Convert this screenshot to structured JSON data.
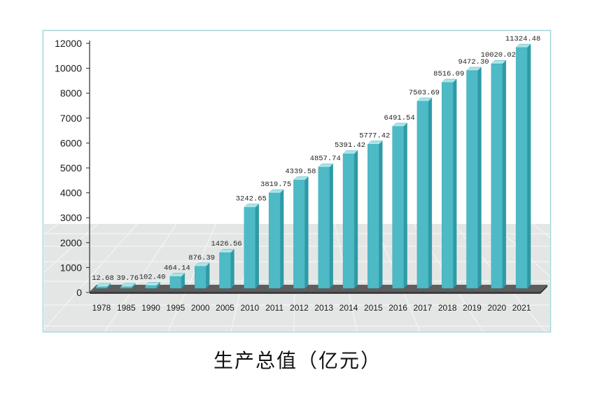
{
  "chart_data": {
    "type": "bar",
    "title": "生产总值（亿元）",
    "categories": [
      "1978",
      "1985",
      "1990",
      "1995",
      "2000",
      "2005",
      "2010",
      "2011",
      "2012",
      "2013",
      "2014",
      "2015",
      "2016",
      "2017",
      "2018",
      "2019",
      "2020",
      "2021"
    ],
    "values": [
      12.68,
      39.76,
      102.4,
      464.14,
      876.39,
      1426.56,
      3242.65,
      3819.75,
      4339.58,
      4857.74,
      5391.42,
      5777.42,
      6491.54,
      7503.69,
      8516.09,
      9472.3,
      10020.02,
      11324.48
    ],
    "value_labels": [
      "12.68",
      "39.76",
      "102.40",
      "464.14",
      "876.39",
      "1426.56",
      "3242.65",
      "3819.75",
      "4339.58",
      "4857.74",
      "5391.42",
      "5777.42",
      "6491.54",
      "7503.69",
      "8516.09",
      "9472.30",
      "10020.02",
      "11324.48"
    ],
    "yticks": [
      "12000",
      "10000",
      "8000",
      "7000",
      "6000",
      "5000",
      "4000",
      "3000",
      "2000",
      "1000",
      "0"
    ],
    "ylim": [
      0,
      12000
    ],
    "grid": false,
    "colors": {
      "bar_front": "#4ebac6",
      "bar_side": "#2f9aa6",
      "bar_top": "#a9e4e9",
      "bar_edge": "#3aa4b0",
      "floor_slab": "#5e5e5e",
      "floor_plane": "#e4e6e6",
      "frame_border": "#9fd7db"
    }
  }
}
